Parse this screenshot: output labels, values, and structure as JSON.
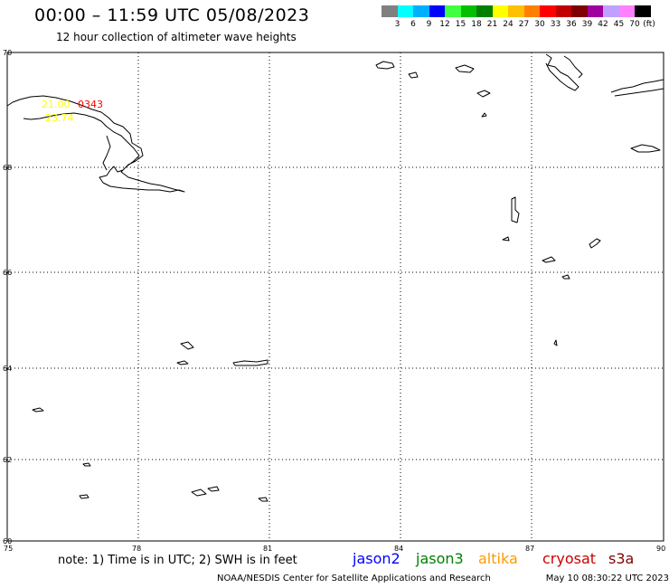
{
  "header": {
    "title": "00:00 – 11:59 UTC 05/08/2023",
    "subtitle": "12 hour collection of altimeter wave heights"
  },
  "colorbar": {
    "unit": "(ft)",
    "swatches": [
      "#808080",
      "#00ffff",
      "#00b0ff",
      "#0000ff",
      "#40ff40",
      "#00c000",
      "#008000",
      "#ffff00",
      "#ffc000",
      "#ff8000",
      "#ff0000",
      "#c00000",
      "#800000",
      "#a000a0",
      "#c0a0ff",
      "#ff80ff",
      "#000000"
    ],
    "labels": [
      "3",
      "6",
      "9",
      "12",
      "15",
      "18",
      "21",
      "24",
      "27",
      "30",
      "33",
      "36",
      "39",
      "42",
      "45",
      "70"
    ]
  },
  "map": {
    "lat_labels": [
      "70",
      "68",
      "66",
      "64",
      "62",
      "60"
    ],
    "lon_labels": [
      "75",
      "78",
      "81",
      "84",
      "87",
      "90"
    ],
    "observations": [
      {
        "label": "21.00",
        "color": "#ffff00"
      },
      {
        "label": "0343",
        "color": "#ff0000"
      },
      {
        "label": "23.74",
        "color": "#ffff00"
      }
    ]
  },
  "note": "note: 1) Time is in UTC; 2) SWH is in feet",
  "satellites": [
    {
      "name": "jason2",
      "color": "#0000ff"
    },
    {
      "name": "jason3",
      "color": "#008000"
    },
    {
      "name": "altika",
      "color": "#ff9900"
    },
    {
      "name": "cryosat",
      "color": "#cc0000"
    },
    {
      "name": "s3a",
      "color": "#800000"
    }
  ],
  "footer": {
    "agency": "NOAA/NESDIS Center for Satellite Applications and Research",
    "timestamp": "May 10 08:30:22 UTC 2023"
  }
}
